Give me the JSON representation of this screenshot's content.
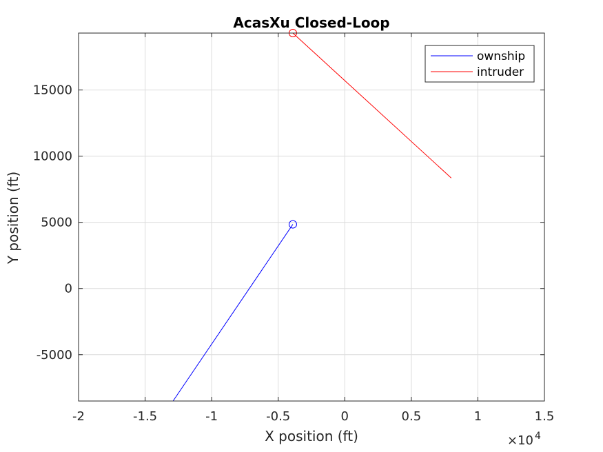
{
  "chart_data": {
    "type": "line",
    "title": "AcasXu Closed-Loop",
    "xlabel": "X position (ft)",
    "ylabel": "Y position (ft)",
    "x_exponent_label": "×10",
    "x_exponent_power": "4",
    "xlim": [
      -20000,
      15000
    ],
    "ylim": [
      -8500,
      19300
    ],
    "xticks": [
      -20000,
      -15000,
      -10000,
      -5000,
      0,
      5000,
      10000,
      15000
    ],
    "xtick_labels": [
      "-2",
      "-1.5",
      "-1",
      "-0.5",
      "0",
      "0.5",
      "1",
      "1.5"
    ],
    "yticks": [
      -5000,
      0,
      5000,
      10000,
      15000
    ],
    "ytick_labels": [
      "-5000",
      "0",
      "5000",
      "10000",
      "15000"
    ],
    "grid": true,
    "legend_position": "top-right",
    "series": [
      {
        "name": "ownship",
        "color": "#0000ff",
        "x": [
          -12900,
          -3900
        ],
        "y": [
          -8500,
          4850
        ],
        "end_marker": {
          "x": -3900,
          "y": 4850,
          "shape": "circle"
        }
      },
      {
        "name": "intruder",
        "color": "#ff0000",
        "x": [
          -3900,
          8000
        ],
        "y": [
          19300,
          8350
        ],
        "end_marker": {
          "x": -3900,
          "y": 19300,
          "shape": "circle"
        }
      }
    ]
  }
}
